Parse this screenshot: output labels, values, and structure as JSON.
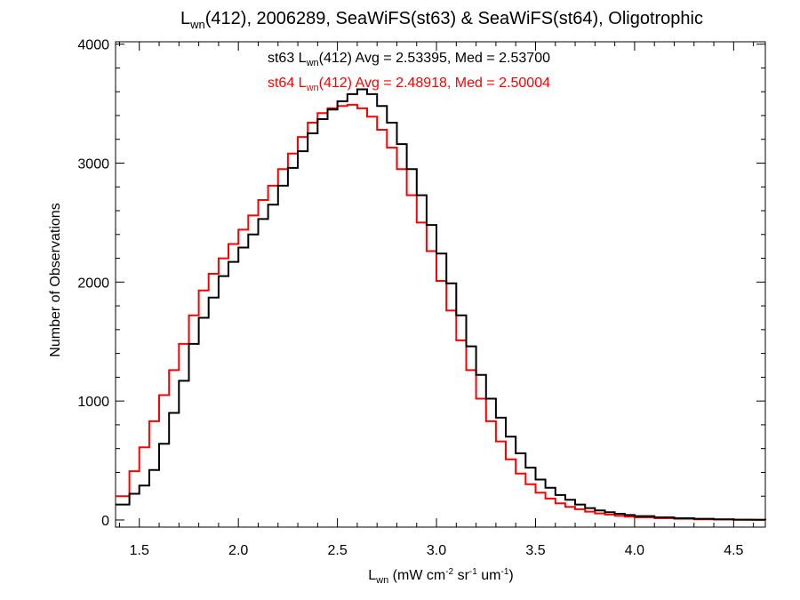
{
  "chart_data": {
    "type": "line",
    "step": true,
    "title": {
      "pre": "L",
      "sub": "wn",
      "post": "(412), 2006289, SeaWiFS(st63) & SeaWiFS(st64), Oligotrophic"
    },
    "xlabel": {
      "pre": "L",
      "sub": "wn",
      "mid1": " (mW cm",
      "sup1": "-2",
      "mid2": " sr",
      "sup2": "-1",
      "mid3": " um",
      "sup3": "-1",
      "post": ")"
    },
    "ylabel": "Number of Observations",
    "xlim": [
      1.38,
      4.66
    ],
    "ylim": [
      -60,
      4020
    ],
    "xticks": [
      1.5,
      2.0,
      2.5,
      3.0,
      3.5,
      4.0,
      4.5
    ],
    "xtick_labels": [
      "1.5",
      "2.0",
      "2.5",
      "3.0",
      "3.5",
      "4.0",
      "4.5"
    ],
    "yticks": [
      0,
      1000,
      2000,
      3000,
      4000
    ],
    "ytick_labels": [
      "0",
      "1000",
      "2000",
      "3000",
      "4000"
    ],
    "grid": false,
    "annotations": [
      {
        "series": "st63",
        "color": "#000000",
        "pre": "st63 L",
        "sub": "wn",
        "post": "(412) Avg = 2.53395, Med = 2.53700"
      },
      {
        "series": "st64",
        "color": "#ff0000",
        "pre": "st64 L",
        "sub": "wn",
        "post": "(412) Avg = 2.48918, Med = 2.50004"
      }
    ],
    "series": [
      {
        "name": "st63",
        "color": "#000000",
        "x": [
          1.38,
          1.45,
          1.5,
          1.55,
          1.6,
          1.65,
          1.7,
          1.75,
          1.8,
          1.85,
          1.9,
          1.95,
          2.0,
          2.05,
          2.1,
          2.15,
          2.2,
          2.25,
          2.3,
          2.35,
          2.4,
          2.45,
          2.5,
          2.55,
          2.6,
          2.65,
          2.7,
          2.75,
          2.8,
          2.85,
          2.9,
          2.95,
          3.0,
          3.05,
          3.1,
          3.15,
          3.2,
          3.25,
          3.3,
          3.35,
          3.4,
          3.45,
          3.5,
          3.55,
          3.6,
          3.65,
          3.7,
          3.75,
          3.8,
          3.85,
          3.9,
          3.95,
          4.0,
          4.1,
          4.2,
          4.3,
          4.4,
          4.5,
          4.6,
          4.66
        ],
        "y": [
          130,
          220,
          290,
          420,
          640,
          900,
          1170,
          1480,
          1700,
          1870,
          2050,
          2170,
          2290,
          2400,
          2530,
          2650,
          2810,
          2960,
          3100,
          3250,
          3370,
          3450,
          3520,
          3580,
          3620,
          3580,
          3480,
          3340,
          3160,
          2950,
          2730,
          2480,
          2240,
          1990,
          1720,
          1460,
          1220,
          1020,
          860,
          700,
          560,
          440,
          340,
          270,
          210,
          170,
          130,
          100,
          80,
          65,
          52,
          42,
          33,
          22,
          15,
          10,
          6,
          3,
          1,
          0
        ]
      },
      {
        "name": "st64",
        "color": "#ff0000",
        "x": [
          1.38,
          1.45,
          1.5,
          1.55,
          1.6,
          1.65,
          1.7,
          1.75,
          1.8,
          1.85,
          1.9,
          1.95,
          2.0,
          2.05,
          2.1,
          2.15,
          2.2,
          2.25,
          2.3,
          2.35,
          2.4,
          2.45,
          2.5,
          2.55,
          2.6,
          2.65,
          2.7,
          2.75,
          2.8,
          2.85,
          2.9,
          2.95,
          3.0,
          3.05,
          3.1,
          3.15,
          3.2,
          3.25,
          3.3,
          3.35,
          3.4,
          3.45,
          3.5,
          3.55,
          3.6,
          3.65,
          3.7,
          3.75,
          3.8,
          3.85,
          3.9,
          3.95,
          4.0,
          4.1,
          4.2,
          4.3,
          4.4,
          4.5,
          4.6,
          4.66
        ],
        "y": [
          200,
          410,
          610,
          830,
          1050,
          1260,
          1480,
          1720,
          1930,
          2070,
          2200,
          2320,
          2440,
          2560,
          2690,
          2810,
          2950,
          3080,
          3220,
          3340,
          3420,
          3460,
          3480,
          3490,
          3460,
          3390,
          3280,
          3130,
          2950,
          2730,
          2500,
          2260,
          2010,
          1760,
          1510,
          1260,
          1020,
          830,
          660,
          510,
          390,
          300,
          230,
          180,
          140,
          110,
          90,
          70,
          55,
          45,
          36,
          28,
          22,
          15,
          10,
          6,
          4,
          2,
          1,
          0
        ]
      }
    ]
  }
}
